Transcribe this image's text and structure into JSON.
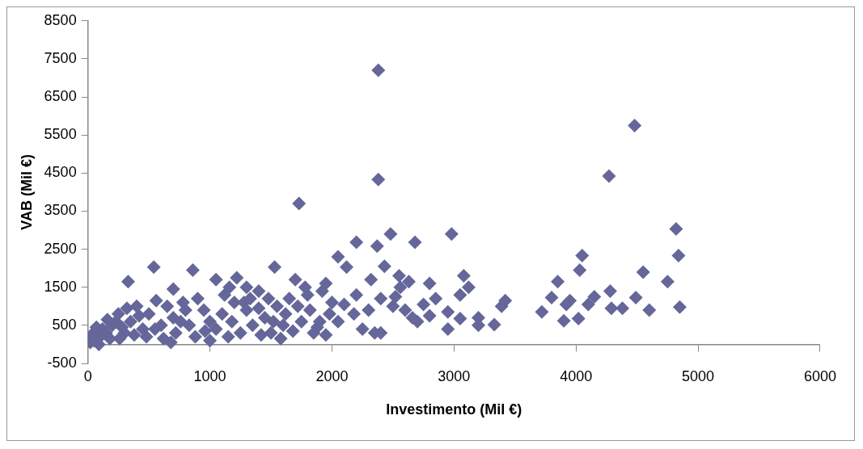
{
  "chart_data": {
    "type": "scatter",
    "xlabel": "Investimento (Mil €)",
    "ylabel": "VAB (Mil €)",
    "marker": "diamond",
    "grid": false,
    "legend": false,
    "xlim": [
      0,
      6000
    ],
    "xticks": [
      0,
      1000,
      2000,
      3000,
      4000,
      5000,
      6000
    ],
    "ylim": [
      -500,
      8500
    ],
    "yticks": [
      -500,
      500,
      1500,
      2500,
      3500,
      4500,
      5500,
      6500,
      7500,
      8500
    ],
    "series": [
      {
        "color": "#656699",
        "x": [
          3720,
          3800,
          3850,
          3900,
          3920,
          3950,
          4020,
          4030,
          4050,
          4100,
          4150,
          4270,
          4280,
          4290,
          4380,
          4480,
          4490,
          4550,
          4600,
          4750,
          4820,
          4840,
          4850,
          2380,
          2380,
          1730,
          2480,
          2980,
          2200,
          2370,
          2680,
          2050,
          2120,
          2430,
          2320,
          2400,
          2630,
          2800,
          2950,
          3050,
          3080,
          3120,
          3050,
          3200,
          3200,
          3330,
          3390,
          3420,
          2950,
          2560,
          2520,
          2600,
          2700,
          2750,
          2850,
          2800,
          2250,
          2350,
          2300,
          2180,
          2100,
          2000,
          1950,
          1900,
          1850,
          1950,
          2050,
          2200,
          2400,
          2660,
          2500,
          2550,
          330,
          540,
          860,
          700,
          1530,
          1050,
          1220,
          1700,
          1400,
          1300,
          1650,
          1800,
          1550,
          1450,
          1600,
          1500,
          1300,
          1200,
          1100,
          1000,
          900,
          800,
          700,
          650,
          600,
          500,
          450,
          400,
          350,
          300,
          250,
          200,
          150,
          100,
          50,
          20,
          70,
          120,
          180,
          230,
          280,
          380,
          420,
          480,
          550,
          620,
          680,
          720,
          780,
          830,
          880,
          950,
          1000,
          1050,
          1120,
          1150,
          1180,
          1250,
          1280,
          1350,
          1400,
          1420,
          1480,
          1520,
          1580,
          1620,
          1680,
          1720,
          1750,
          1780,
          1820,
          1880,
          1920,
          1980,
          320,
          260,
          90,
          30,
          160,
          560,
          760,
          960,
          1160,
          1330
        ],
        "values": [
          850,
          1230,
          1650,
          620,
          1050,
          1150,
          680,
          1950,
          2330,
          1050,
          1250,
          4420,
          1400,
          950,
          950,
          5750,
          1230,
          1900,
          900,
          1650,
          3030,
          2330,
          980,
          7200,
          4330,
          3700,
          2900,
          2900,
          2680,
          2580,
          2680,
          2300,
          2030,
          2050,
          1700,
          1200,
          1650,
          1600,
          850,
          1300,
          1800,
          1500,
          680,
          700,
          500,
          520,
          1000,
          1150,
          400,
          1500,
          1250,
          900,
          600,
          1050,
          1200,
          750,
          400,
          300,
          900,
          800,
          1050,
          1100,
          1600,
          600,
          300,
          250,
          600,
          1300,
          300,
          700,
          1000,
          1800,
          1650,
          2030,
          1950,
          1450,
          2030,
          1700,
          1750,
          1700,
          1400,
          1500,
          1200,
          1300,
          1000,
          700,
          500,
          300,
          900,
          1100,
          800,
          600,
          1200,
          900,
          700,
          1000,
          500,
          800,
          400,
          1000,
          600,
          300,
          800,
          500,
          300,
          200,
          100,
          50,
          450,
          400,
          150,
          600,
          450,
          250,
          750,
          200,
          400,
          150,
          50,
          300,
          1100,
          500,
          200,
          900,
          100,
          400,
          1300,
          200,
          600,
          300,
          1100,
          500,
          950,
          250,
          1200,
          600,
          150,
          800,
          350,
          1000,
          600,
          1500,
          900,
          450,
          1400,
          800,
          950,
          150,
          0,
          250,
          650,
          1150,
          600,
          350,
          1500,
          1200
        ]
      }
    ]
  }
}
